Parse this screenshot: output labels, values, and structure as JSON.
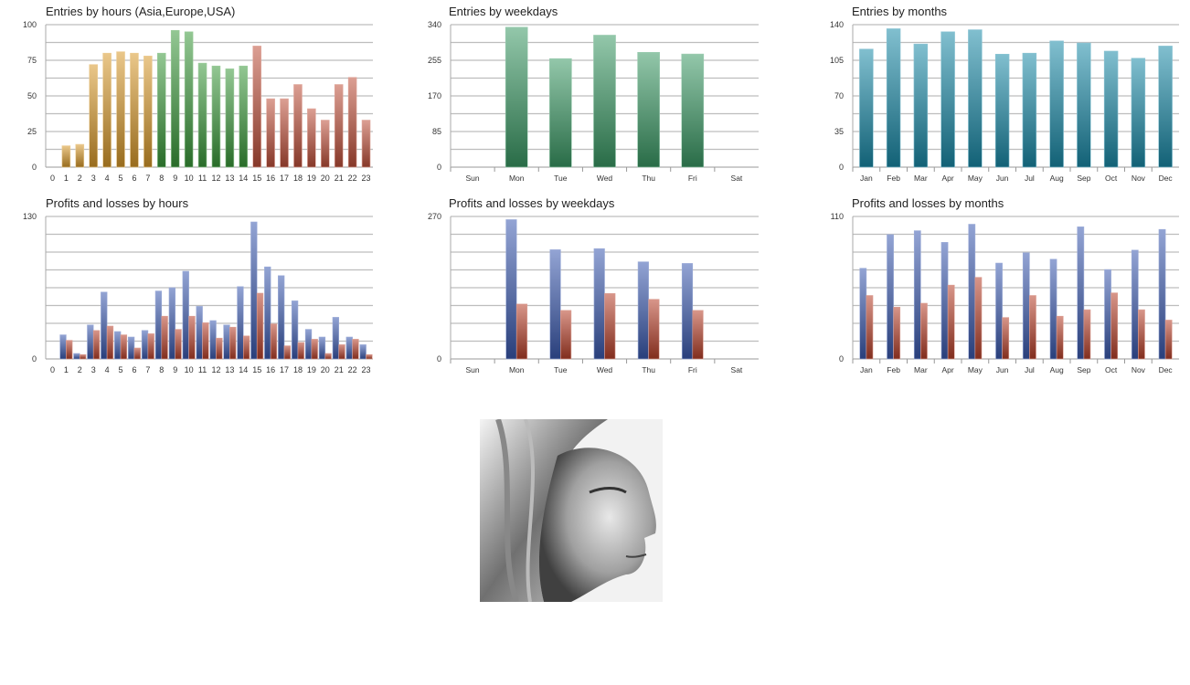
{
  "chart_data": [
    {
      "type": "bar",
      "title": "Entries by hours (Asia,Europe,USA)",
      "categories": [
        "0",
        "1",
        "2",
        "3",
        "4",
        "5",
        "6",
        "7",
        "8",
        "9",
        "10",
        "11",
        "12",
        "13",
        "14",
        "15",
        "16",
        "17",
        "18",
        "19",
        "20",
        "21",
        "22",
        "23"
      ],
      "values": [
        0,
        15,
        16,
        72,
        80,
        81,
        80,
        78,
        80,
        96,
        95,
        73,
        71,
        69,
        71,
        85,
        48,
        48,
        58,
        41,
        33,
        58,
        63,
        33
      ],
      "bar_colors_by_session": {
        "asia": "#d99a2b",
        "europe": "#3a9a3a",
        "usa": "#c0503a"
      },
      "session_of_category": [
        "asia",
        "asia",
        "asia",
        "asia",
        "asia",
        "asia",
        "asia",
        "asia",
        "europe",
        "europe",
        "europe",
        "europe",
        "europe",
        "europe",
        "europe",
        "usa",
        "usa",
        "usa",
        "usa",
        "usa",
        "usa",
        "usa",
        "usa",
        "usa"
      ],
      "yticks": [
        "0",
        "25",
        "50",
        "75",
        "100"
      ],
      "ylim": [
        0,
        100
      ],
      "grid": true
    },
    {
      "type": "bar",
      "title": "Entries by weekdays",
      "categories": [
        "Sun",
        "Mon",
        "Tue",
        "Wed",
        "Thu",
        "Fri",
        "Sat"
      ],
      "values": [
        0,
        334,
        259,
        315,
        274,
        270,
        0
      ],
      "color": "#3a9a65",
      "yticks": [
        "0",
        "85",
        "170",
        "255",
        "340"
      ],
      "ylim": [
        0,
        340
      ],
      "grid": true
    },
    {
      "type": "bar",
      "title": "Entries by months",
      "categories": [
        "Jan",
        "Feb",
        "Mar",
        "Apr",
        "May",
        "Jun",
        "Jul",
        "Aug",
        "Sep",
        "Oct",
        "Nov",
        "Dec"
      ],
      "values": [
        116,
        136,
        121,
        133,
        135,
        111,
        112,
        124,
        122,
        114,
        107,
        119
      ],
      "color": "#1a8aa8",
      "yticks": [
        "0",
        "35",
        "70",
        "105",
        "140"
      ],
      "ylim": [
        0,
        140
      ],
      "grid": true
    },
    {
      "type": "bar",
      "title": "Profits and losses by hours",
      "categories": [
        "0",
        "1",
        "2",
        "3",
        "4",
        "5",
        "6",
        "7",
        "8",
        "9",
        "10",
        "11",
        "12",
        "13",
        "14",
        "15",
        "16",
        "17",
        "18",
        "19",
        "20",
        "21",
        "22",
        "23"
      ],
      "series": [
        {
          "values": [
            0,
            22,
            5,
            31,
            61,
            25,
            20,
            26,
            62,
            65,
            80,
            48,
            35,
            31,
            66,
            125,
            84,
            76,
            53,
            27,
            20,
            38,
            20,
            13
          ],
          "color": "#3a5ab0"
        },
        {
          "values": [
            0,
            17,
            4,
            26,
            30,
            22,
            10,
            23,
            39,
            27,
            39,
            33,
            19,
            29,
            21,
            60,
            32,
            12,
            15,
            18,
            5,
            13,
            18,
            4
          ],
          "color": "#b8402a"
        }
      ],
      "yticks": [
        "0",
        "130"
      ],
      "ylim": [
        0,
        130
      ],
      "grid": true
    },
    {
      "type": "bar",
      "title": "Profits and losses by weekdays",
      "categories": [
        "Sun",
        "Mon",
        "Tue",
        "Wed",
        "Thu",
        "Fri",
        "Sat"
      ],
      "series": [
        {
          "values": [
            0,
            264,
            207,
            209,
            184,
            181,
            0
          ],
          "color": "#3a5ab0"
        },
        {
          "values": [
            0,
            104,
            92,
            124,
            113,
            92,
            0
          ],
          "color": "#b8402a"
        }
      ],
      "yticks": [
        "0",
        "270"
      ],
      "ylim": [
        0,
        270
      ],
      "grid": true
    },
    {
      "type": "bar",
      "title": "Profits and losses by months",
      "categories": [
        "Jan",
        "Feb",
        "Mar",
        "Apr",
        "May",
        "Jun",
        "Jul",
        "Aug",
        "Sep",
        "Oct",
        "Nov",
        "Dec"
      ],
      "series": [
        {
          "values": [
            70,
            96,
            99,
            90,
            104,
            74,
            82,
            77,
            102,
            69,
            84,
            100
          ],
          "color": "#3a5ab0"
        },
        {
          "values": [
            49,
            40,
            43,
            57,
            63,
            32,
            49,
            33,
            38,
            51,
            38,
            30
          ],
          "color": "#b8402a"
        }
      ],
      "yticks": [
        "0",
        "110"
      ],
      "ylim": [
        0,
        110
      ],
      "grid": true
    }
  ],
  "image": {
    "icon": "grayscale-female-portrait"
  }
}
